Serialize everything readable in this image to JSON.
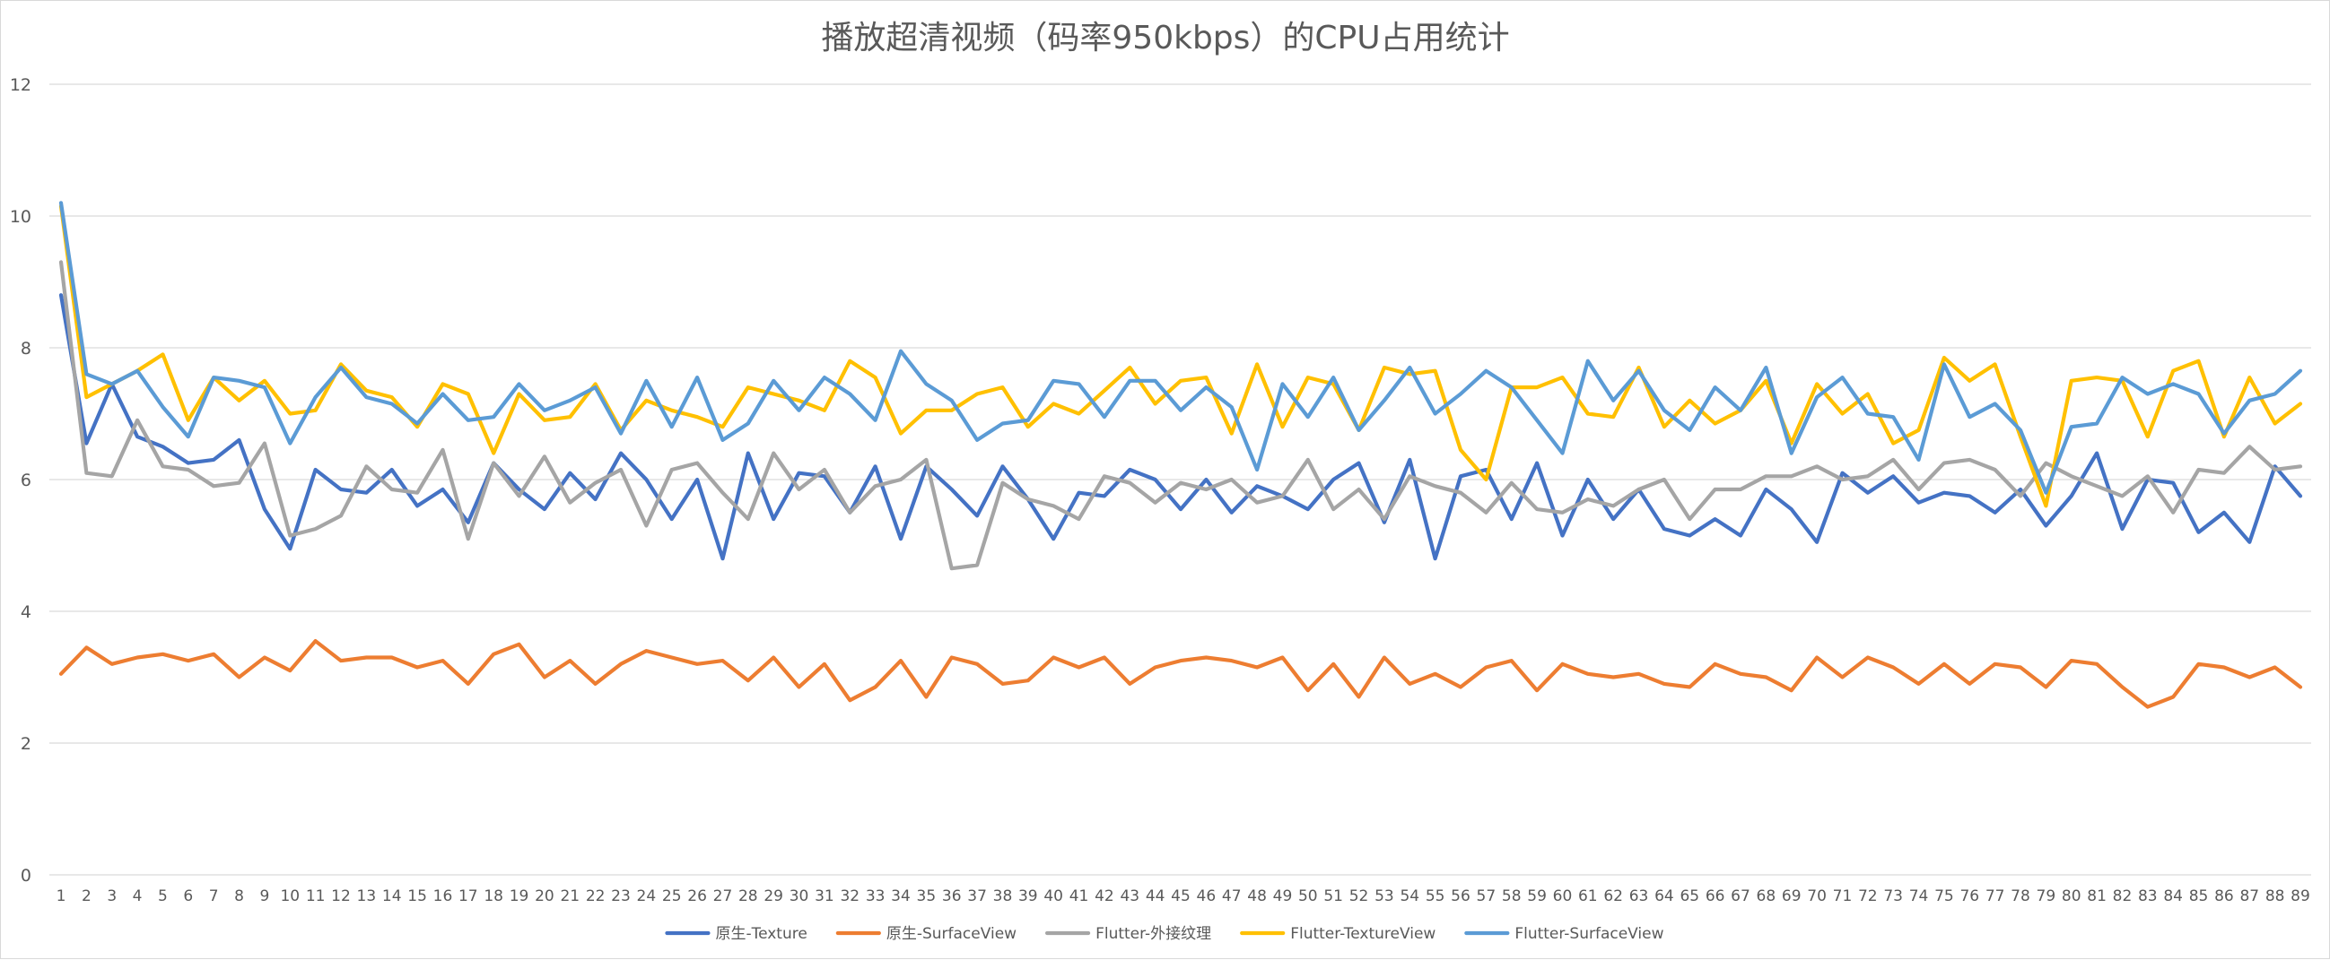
{
  "chart_data": {
    "type": "line",
    "title": "播放超清视频（码率950kbps）的CPU占用统计",
    "xlabel": "",
    "ylabel": "",
    "ylim": [
      0,
      12
    ],
    "yticks": [
      "0",
      "2",
      "4",
      "6",
      "8",
      "10",
      "12"
    ],
    "grid": true,
    "legend_position": "bottom",
    "categories": [
      "1",
      "2",
      "3",
      "4",
      "5",
      "6",
      "7",
      "8",
      "9",
      "10",
      "11",
      "12",
      "13",
      "14",
      "15",
      "16",
      "17",
      "18",
      "19",
      "20",
      "21",
      "22",
      "23",
      "24",
      "25",
      "26",
      "27",
      "28",
      "29",
      "30",
      "31",
      "32",
      "33",
      "34",
      "35",
      "36",
      "37",
      "38",
      "39",
      "40",
      "41",
      "42",
      "43",
      "44",
      "45",
      "46",
      "47",
      "48",
      "49",
      "50",
      "51",
      "52",
      "53",
      "54",
      "55",
      "56",
      "57",
      "58",
      "59",
      "60",
      "61",
      "62",
      "63",
      "64",
      "65",
      "66",
      "67",
      "68",
      "69",
      "70",
      "71",
      "72",
      "73",
      "74",
      "75",
      "76",
      "77",
      "78",
      "79",
      "80",
      "81",
      "82",
      "83",
      "84",
      "85",
      "86",
      "87",
      "88",
      "89"
    ],
    "series": [
      {
        "name": "原生-Texture",
        "color": "#4472c4",
        "values": [
          8.8,
          6.55,
          7.45,
          6.65,
          6.5,
          6.25,
          6.3,
          6.6,
          5.55,
          4.95,
          6.15,
          5.85,
          5.8,
          6.15,
          5.6,
          5.85,
          5.35,
          6.25,
          5.85,
          5.55,
          6.1,
          5.7,
          6.4,
          6.0,
          5.4,
          6.0,
          4.8,
          6.4,
          5.4,
          6.1,
          6.05,
          5.5,
          6.2,
          5.1,
          6.2,
          5.85,
          5.45,
          6.2,
          5.7,
          5.1,
          5.8,
          5.75,
          6.15,
          6.0,
          5.55,
          6.0,
          5.5,
          5.9,
          5.75,
          5.55,
          6.0,
          6.25,
          5.35,
          6.3,
          4.8,
          6.05,
          6.15,
          5.4,
          6.25,
          5.15,
          6.0,
          5.4,
          5.85,
          5.25,
          5.15,
          5.4,
          5.15,
          5.85,
          5.55,
          5.05,
          6.1,
          5.8,
          6.05,
          5.65,
          5.8,
          5.75,
          5.5,
          5.85,
          5.3,
          5.75,
          6.4,
          5.25,
          6.0,
          5.95,
          5.2,
          5.5,
          5.05,
          6.2,
          5.75
        ]
      },
      {
        "name": "原生-SurfaceView",
        "color": "#ed7d31",
        "values": [
          3.05,
          3.45,
          3.2,
          3.3,
          3.35,
          3.25,
          3.35,
          3.0,
          3.3,
          3.1,
          3.55,
          3.25,
          3.3,
          3.3,
          3.15,
          3.25,
          2.9,
          3.35,
          3.5,
          3.0,
          3.25,
          2.9,
          3.2,
          3.4,
          3.3,
          3.2,
          3.25,
          2.95,
          3.3,
          2.85,
          3.2,
          2.65,
          2.85,
          3.25,
          2.7,
          3.3,
          3.2,
          2.9,
          2.95,
          3.3,
          3.15,
          3.3,
          2.9,
          3.15,
          3.25,
          3.3,
          3.25,
          3.15,
          3.3,
          2.8,
          3.2,
          2.7,
          3.3,
          2.9,
          3.05,
          2.85,
          3.15,
          3.25,
          2.8,
          3.2,
          3.05,
          3.0,
          3.05,
          2.9,
          2.85,
          3.2,
          3.05,
          3.0,
          2.8,
          3.3,
          3.0,
          3.3,
          3.15,
          2.9,
          3.2,
          2.9,
          3.2,
          3.15,
          2.85,
          3.25,
          3.2,
          2.85,
          2.55,
          2.7,
          3.2,
          3.15,
          3.0,
          3.15,
          2.85
        ]
      },
      {
        "name": "Flutter-外接纹理",
        "color": "#a5a5a5",
        "values": [
          9.3,
          6.1,
          6.05,
          6.9,
          6.2,
          6.15,
          5.9,
          5.95,
          6.55,
          5.15,
          5.25,
          5.45,
          6.2,
          5.85,
          5.8,
          6.45,
          5.1,
          6.25,
          5.75,
          6.35,
          5.65,
          5.95,
          6.15,
          5.3,
          6.15,
          6.25,
          5.8,
          5.4,
          6.4,
          5.85,
          6.15,
          5.5,
          5.9,
          6.0,
          6.3,
          4.65,
          4.7,
          5.95,
          5.7,
          5.6,
          5.4,
          6.05,
          5.95,
          5.65,
          5.95,
          5.85,
          6.0,
          5.65,
          5.75,
          6.3,
          5.55,
          5.85,
          5.4,
          6.05,
          5.9,
          5.8,
          5.5,
          5.95,
          5.55,
          5.5,
          5.7,
          5.6,
          5.85,
          6.0,
          5.4,
          5.85,
          5.85,
          6.05,
          6.05,
          6.2,
          6.0,
          6.05,
          6.3,
          5.85,
          6.25,
          6.3,
          6.15,
          5.75,
          6.25,
          6.05,
          5.9,
          5.75,
          6.05,
          5.5,
          6.15,
          6.1,
          6.5,
          6.15,
          6.2
        ]
      },
      {
        "name": "Flutter-TextureView",
        "color": "#ffc000",
        "values": [
          10.15,
          7.25,
          7.45,
          7.65,
          7.9,
          6.9,
          7.55,
          7.2,
          7.5,
          7.0,
          7.05,
          7.75,
          7.35,
          7.25,
          6.8,
          7.45,
          7.3,
          6.4,
          7.3,
          6.9,
          6.95,
          7.45,
          6.75,
          7.2,
          7.05,
          6.95,
          6.8,
          7.4,
          7.3,
          7.2,
          7.05,
          7.8,
          7.55,
          6.7,
          7.05,
          7.05,
          7.3,
          7.4,
          6.8,
          7.15,
          7.0,
          7.35,
          7.7,
          7.15,
          7.5,
          7.55,
          6.7,
          7.75,
          6.8,
          7.55,
          7.45,
          6.75,
          7.7,
          7.6,
          7.65,
          6.45,
          6.0,
          7.4,
          7.4,
          7.55,
          7.0,
          6.95,
          7.7,
          6.8,
          7.2,
          6.85,
          7.05,
          7.5,
          6.55,
          7.45,
          7.0,
          7.3,
          6.55,
          6.75,
          7.85,
          7.5,
          7.75,
          6.65,
          5.6,
          7.5,
          7.55,
          7.5,
          6.65,
          7.65,
          7.8,
          6.65,
          7.55,
          6.85,
          7.15
        ]
      },
      {
        "name": "Flutter-SurfaceView",
        "color": "#5b9bd5",
        "values": [
          10.2,
          7.6,
          7.45,
          7.65,
          7.1,
          6.65,
          7.55,
          7.5,
          7.4,
          6.55,
          7.25,
          7.7,
          7.25,
          7.15,
          6.85,
          7.3,
          6.9,
          6.95,
          7.45,
          7.05,
          7.2,
          7.4,
          6.7,
          7.5,
          6.8,
          7.55,
          6.6,
          6.85,
          7.5,
          7.05,
          7.55,
          7.3,
          6.9,
          7.95,
          7.45,
          7.2,
          6.6,
          6.85,
          6.9,
          7.5,
          7.45,
          6.95,
          7.5,
          7.5,
          7.05,
          7.4,
          7.1,
          6.15,
          7.45,
          6.95,
          7.55,
          6.75,
          7.2,
          7.7,
          7.0,
          7.3,
          7.65,
          7.4,
          6.9,
          6.4,
          7.8,
          7.2,
          7.65,
          7.05,
          6.75,
          7.4,
          7.05,
          7.7,
          6.4,
          7.25,
          7.55,
          7.0,
          6.95,
          6.3,
          7.75,
          6.95,
          7.15,
          6.75,
          5.8,
          6.8,
          6.85,
          7.55,
          7.3,
          7.45,
          7.3,
          6.7,
          7.2,
          7.3,
          7.65
        ]
      }
    ]
  }
}
